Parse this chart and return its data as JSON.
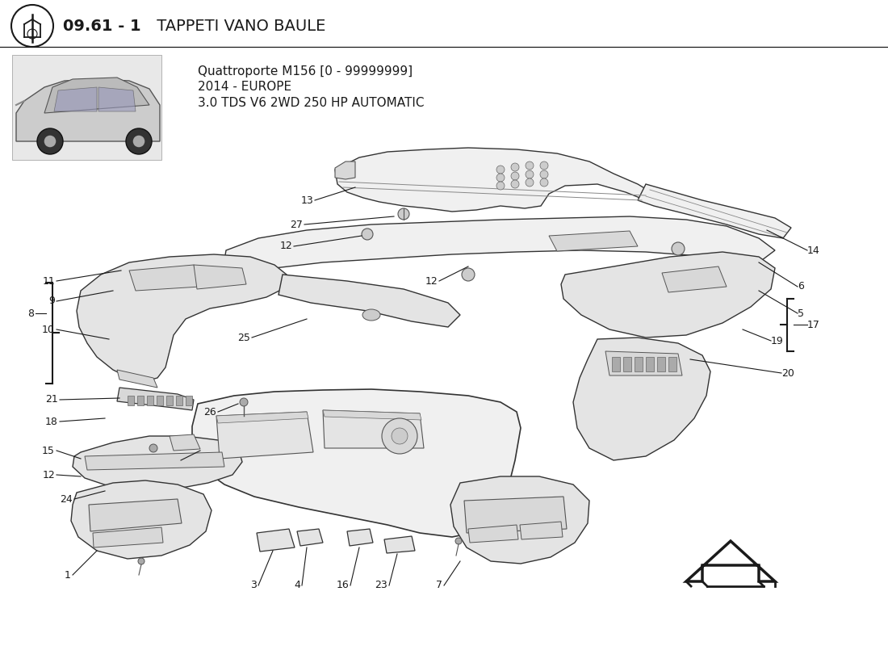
{
  "title_bold": "09.61 - 1",
  "title_normal": " TAPPETI VANO BAULE",
  "subtitle_line1": "Quattroporte M156 [0 - 99999999]",
  "subtitle_line2": "2014 - EUROPE",
  "subtitle_line3": "3.0 TDS V6 2WD 250 HP AUTOMATIC",
  "bg_color": "#ffffff",
  "lc": "#1a1a1a",
  "gray_fill": "#f0f0f0",
  "dark_fill": "#d8d8d8",
  "mid_fill": "#e4e4e4"
}
